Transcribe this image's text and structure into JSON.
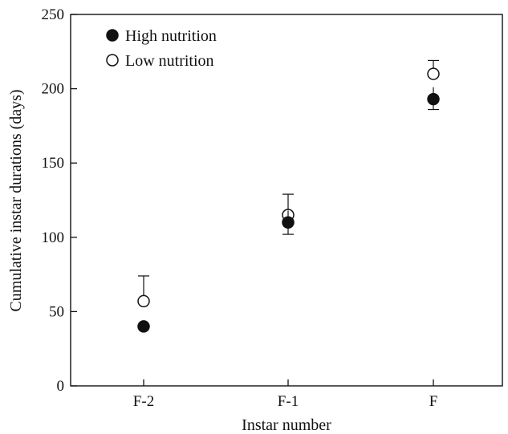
{
  "chart_data": {
    "type": "scatter",
    "title": "",
    "xlabel": "Instar number",
    "ylabel": "Cumulative instar durations (days)",
    "categories": [
      "F-2",
      "F-1",
      "F"
    ],
    "ylim": [
      0,
      250
    ],
    "yticks": [
      0,
      50,
      100,
      150,
      200,
      250
    ],
    "grid": false,
    "legend_position": "top-left",
    "series": [
      {
        "name": "High nutrition",
        "marker": "filled-circle",
        "values": [
          40,
          110,
          193
        ],
        "error_low": [
          40,
          102,
          186
        ],
        "error_high": [
          40,
          118,
          201
        ],
        "error_direction": "down"
      },
      {
        "name": "Low nutrition",
        "marker": "open-circle",
        "values": [
          57,
          115,
          210
        ],
        "error_low": [
          57,
          115,
          210
        ],
        "error_high": [
          74,
          129,
          219
        ],
        "error_direction": "up"
      }
    ]
  }
}
